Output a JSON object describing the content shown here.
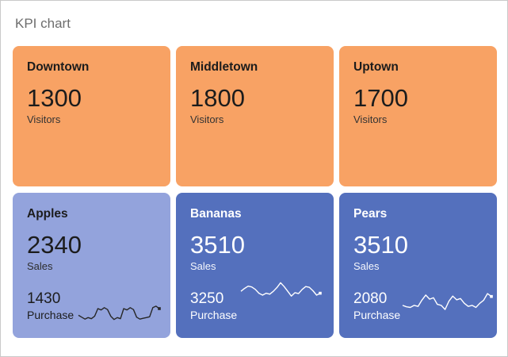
{
  "page": {
    "title": "KPI chart"
  },
  "colors": {
    "orange": "#F8A264",
    "light_blue": "#93A3DC",
    "dark_blue": "#5470BD",
    "dark_text": "#1c1c1c",
    "white_text": "#ffffff",
    "page_title_gray": "#6d6d6d"
  },
  "tiles": {
    "top": [
      {
        "title": "Downtown",
        "value": "1300",
        "label": "Visitors"
      },
      {
        "title": "Middletown",
        "value": "1800",
        "label": "Visitors"
      },
      {
        "title": "Uptown",
        "value": "1700",
        "label": "Visitors"
      }
    ],
    "bottom": [
      {
        "title": "Apples",
        "value": "2340",
        "label": "Sales",
        "secondary_value": "1430",
        "secondary_label": "Purchase",
        "sparkline": [
          40,
          30,
          20,
          28,
          22,
          35,
          75,
          68,
          80,
          70,
          35,
          18,
          28,
          22,
          75,
          68,
          80,
          70,
          30,
          20,
          24,
          28,
          32,
          80,
          88,
          75
        ]
      },
      {
        "title": "Bananas",
        "value": "3510",
        "label": "Sales",
        "secondary_value": "3250",
        "secondary_label": "Purchase",
        "sparkline": [
          45,
          60,
          72,
          68,
          55,
          35,
          25,
          35,
          30,
          45,
          65,
          90,
          70,
          45,
          20,
          38,
          33,
          55,
          70,
          66,
          48,
          25,
          35
        ]
      },
      {
        "title": "Pears",
        "value": "3510",
        "label": "Sales",
        "secondary_value": "2080",
        "secondary_label": "Purchase",
        "sparkline": [
          35,
          28,
          25,
          35,
          30,
          60,
          85,
          65,
          72,
          40,
          35,
          15,
          55,
          80,
          62,
          68,
          45,
          30,
          35,
          25,
          45,
          60,
          92,
          78
        ]
      }
    ]
  },
  "chart_data": {
    "type": "table",
    "title": "KPI chart",
    "groups": [
      {
        "metric": "Visitors",
        "items": [
          {
            "name": "Downtown",
            "visitors": 1300
          },
          {
            "name": "Middletown",
            "visitors": 1800
          },
          {
            "name": "Uptown",
            "visitors": 1700
          }
        ]
      },
      {
        "metrics": [
          "Sales",
          "Purchase"
        ],
        "items": [
          {
            "name": "Apples",
            "sales": 2340,
            "purchase": 1430
          },
          {
            "name": "Bananas",
            "sales": 3510,
            "purchase": 3250
          },
          {
            "name": "Pears",
            "sales": 3510,
            "purchase": 2080
          }
        ]
      }
    ],
    "notes": "Bottom tiles each show an unlabeled sparkline next to the Purchase value; point values are visual estimates on a 0-100 relative scale."
  }
}
